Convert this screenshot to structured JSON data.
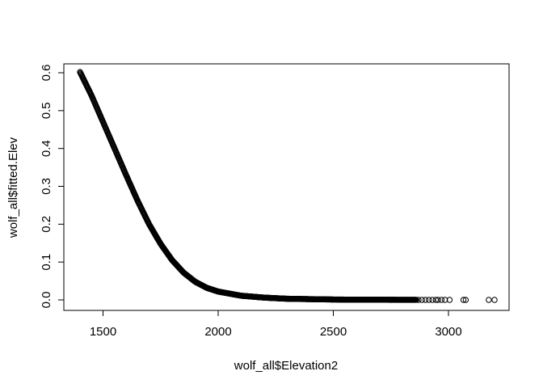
{
  "chart_data": {
    "type": "scatter",
    "title": "",
    "xlabel": "wolf_all$Elevation2",
    "ylabel": "wolf_all$fitted.Elev",
    "xlim": [
      1400,
      3200
    ],
    "ylim": [
      0,
      0.6
    ],
    "x_ticks": [
      1500,
      2000,
      2500,
      3000
    ],
    "y_ticks": [
      0.0,
      0.1,
      0.2,
      0.3,
      0.4,
      0.5,
      0.6
    ],
    "x_tick_labels": [
      "1500",
      "2000",
      "2500",
      "3000"
    ],
    "y_tick_labels": [
      "0.0",
      "0.1",
      "0.2",
      "0.3",
      "0.4",
      "0.5",
      "0.6"
    ],
    "marker": "open-circle",
    "grid": false,
    "curve_samples": [
      {
        "x": 1400,
        "y": 0.602
      },
      {
        "x": 1450,
        "y": 0.54
      },
      {
        "x": 1500,
        "y": 0.47
      },
      {
        "x": 1550,
        "y": 0.4
      },
      {
        "x": 1600,
        "y": 0.33
      },
      {
        "x": 1650,
        "y": 0.262
      },
      {
        "x": 1700,
        "y": 0.2
      },
      {
        "x": 1750,
        "y": 0.148
      },
      {
        "x": 1800,
        "y": 0.105
      },
      {
        "x": 1850,
        "y": 0.072
      },
      {
        "x": 1900,
        "y": 0.048
      },
      {
        "x": 1950,
        "y": 0.032
      },
      {
        "x": 2000,
        "y": 0.022
      },
      {
        "x": 2100,
        "y": 0.011
      },
      {
        "x": 2200,
        "y": 0.006
      },
      {
        "x": 2300,
        "y": 0.003
      },
      {
        "x": 2400,
        "y": 0.002
      },
      {
        "x": 2500,
        "y": 0.001
      },
      {
        "x": 2600,
        "y": 0.0005
      },
      {
        "x": 2800,
        "y": 0.0002
      },
      {
        "x": 3000,
        "y": 0.0
      },
      {
        "x": 3200,
        "y": 0.0
      }
    ],
    "point_density_range": [
      1400,
      2860
    ],
    "sparse_points": [
      {
        "x": 2870,
        "y": 0.0
      },
      {
        "x": 2885,
        "y": 0.0
      },
      {
        "x": 2900,
        "y": 0.0
      },
      {
        "x": 2915,
        "y": 0.0
      },
      {
        "x": 2930,
        "y": 0.0
      },
      {
        "x": 2945,
        "y": 0.0
      },
      {
        "x": 2955,
        "y": 0.0
      },
      {
        "x": 2970,
        "y": 0.0
      },
      {
        "x": 2985,
        "y": 0.0
      },
      {
        "x": 3005,
        "y": 0.0
      },
      {
        "x": 3065,
        "y": 0.0
      },
      {
        "x": 3075,
        "y": 0.0
      },
      {
        "x": 3175,
        "y": 0.0
      },
      {
        "x": 3200,
        "y": 0.0
      }
    ]
  }
}
